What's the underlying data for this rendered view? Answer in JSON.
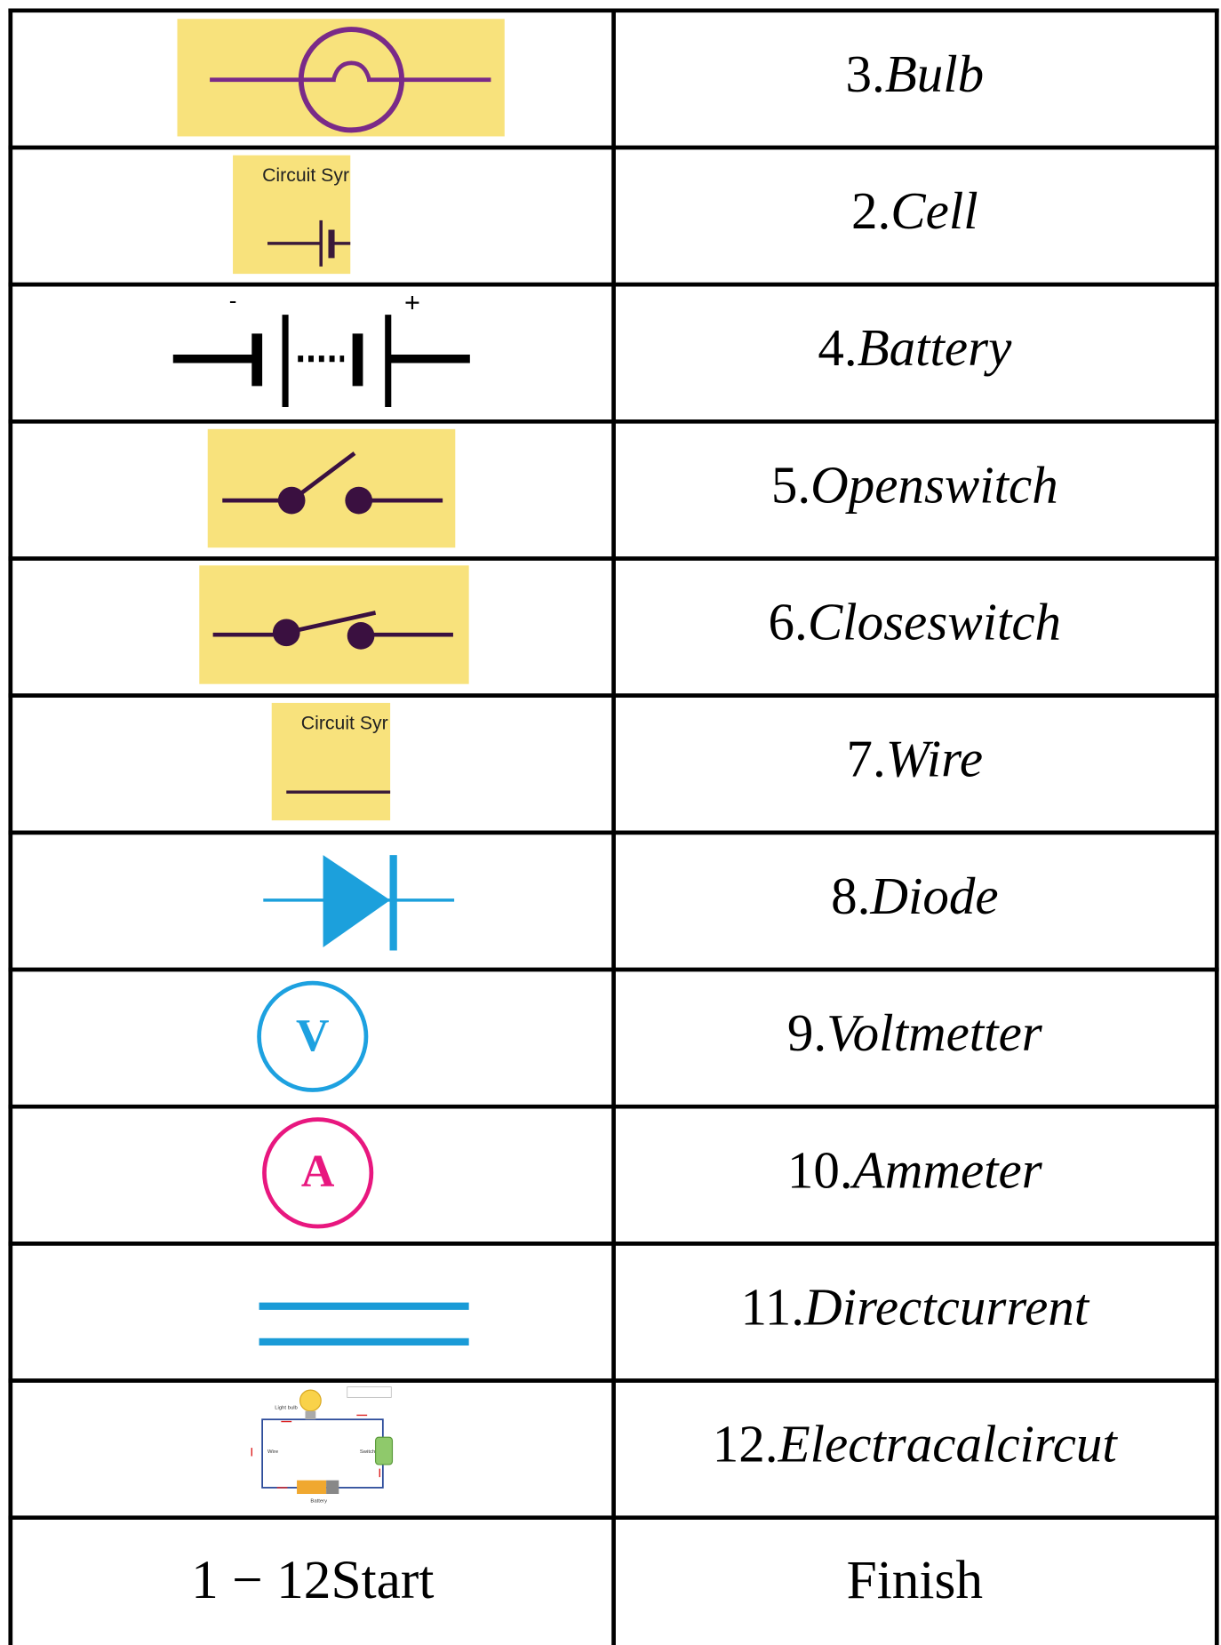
{
  "rows": [
    {
      "number": "3.",
      "name": "Bulb"
    },
    {
      "number": "2.",
      "name": "Cell",
      "symbol_label": "Circuit Syr"
    },
    {
      "number": "4.",
      "name": "Battery",
      "symbol_labels": [
        "-",
        "+"
      ]
    },
    {
      "number": "5.",
      "name": "Openswitch"
    },
    {
      "number": "6.",
      "name": "Closeswitch"
    },
    {
      "number": "7.",
      "name": "Wire",
      "symbol_label": "Circuit Syr"
    },
    {
      "number": "8.",
      "name": "Diode"
    },
    {
      "number": "9.",
      "name": "Voltmetter",
      "symbol_label": "V"
    },
    {
      "number": "10.",
      "name": "Ammeter",
      "symbol_label": "A"
    },
    {
      "number": "11.",
      "name": "Directcurrent"
    },
    {
      "number": "12.",
      "name": "Electracalcircut",
      "symbol_labels": [
        "Light bulb",
        "Wire",
        "Switch",
        "Battery"
      ]
    }
  ],
  "last_row": {
    "left": "1 − 12Start",
    "right": "Finish"
  }
}
